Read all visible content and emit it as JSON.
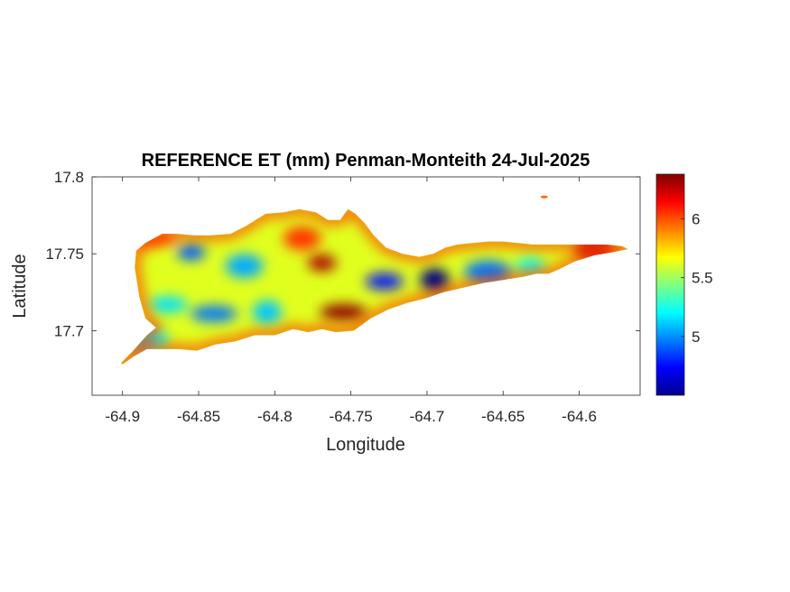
{
  "figure": {
    "title": "REFERENCE ET (mm) Penman-Monteith 24-Jul-2025",
    "xlabel": "Longitude",
    "ylabel": "Latitude"
  },
  "axes": {
    "x_ticks": [
      -64.9,
      -64.85,
      -64.8,
      -64.75,
      -64.7,
      -64.65,
      -64.6
    ],
    "x_tick_labels": [
      "-64.9",
      "-64.85",
      "-64.8",
      "-64.75",
      "-64.7",
      "-64.65",
      "-64.6"
    ],
    "y_ticks": [
      17.8,
      17.75,
      17.7
    ],
    "y_tick_labels": [
      "17.8",
      "17.75",
      "17.7"
    ],
    "xlim": [
      -64.92,
      -64.56
    ],
    "ylim": [
      17.658,
      17.8
    ]
  },
  "colorbar": {
    "ticks": [
      5,
      5.5,
      6
    ],
    "tick_labels": [
      "5",
      "5.5",
      "6"
    ],
    "range": [
      4.5,
      6.38
    ],
    "colormap": "jet"
  },
  "chart_data": {
    "type": "heatmap",
    "title": "REFERENCE ET (mm) Penman-Monteith 24-Jul-2025",
    "xlabel": "Longitude",
    "ylabel": "Latitude",
    "xlim": [
      -64.92,
      -64.56
    ],
    "ylim": [
      17.658,
      17.8
    ],
    "color_range": [
      4.5,
      6.38
    ],
    "colormap": "jet",
    "region_outline_lonlat": [
      [
        -64.901,
        17.679
      ],
      [
        -64.893,
        17.687
      ],
      [
        -64.884,
        17.697
      ],
      [
        -64.878,
        17.702
      ],
      [
        -64.885,
        17.708
      ],
      [
        -64.889,
        17.722
      ],
      [
        -64.892,
        17.741
      ],
      [
        -64.891,
        17.752
      ],
      [
        -64.885,
        17.757
      ],
      [
        -64.874,
        17.763
      ],
      [
        -64.864,
        17.763
      ],
      [
        -64.853,
        17.762
      ],
      [
        -64.842,
        17.762
      ],
      [
        -64.829,
        17.763
      ],
      [
        -64.819,
        17.768
      ],
      [
        -64.806,
        17.776
      ],
      [
        -64.794,
        17.777
      ],
      [
        -64.784,
        17.779
      ],
      [
        -64.773,
        17.777
      ],
      [
        -64.765,
        17.772
      ],
      [
        -64.757,
        17.772
      ],
      [
        -64.752,
        17.779
      ],
      [
        -64.747,
        17.776
      ],
      [
        -64.741,
        17.77
      ],
      [
        -64.735,
        17.762
      ],
      [
        -64.727,
        17.754
      ],
      [
        -64.716,
        17.75
      ],
      [
        -64.705,
        17.748
      ],
      [
        -64.696,
        17.75
      ],
      [
        -64.688,
        17.754
      ],
      [
        -64.68,
        17.756
      ],
      [
        -64.67,
        17.757
      ],
      [
        -64.66,
        17.758
      ],
      [
        -64.65,
        17.758
      ],
      [
        -64.64,
        17.757
      ],
      [
        -64.63,
        17.756
      ],
      [
        -64.62,
        17.756
      ],
      [
        -64.61,
        17.756
      ],
      [
        -64.6,
        17.756
      ],
      [
        -64.592,
        17.756
      ],
      [
        -64.582,
        17.756
      ],
      [
        -64.572,
        17.755
      ],
      [
        -64.568,
        17.753
      ],
      [
        -64.578,
        17.751
      ],
      [
        -64.59,
        17.749
      ],
      [
        -64.603,
        17.745
      ],
      [
        -64.613,
        17.74
      ],
      [
        -64.62,
        17.737
      ],
      [
        -64.628,
        17.737
      ],
      [
        -64.637,
        17.735
      ],
      [
        -64.65,
        17.733
      ],
      [
        -64.663,
        17.731
      ],
      [
        -64.676,
        17.728
      ],
      [
        -64.689,
        17.725
      ],
      [
        -64.701,
        17.721
      ],
      [
        -64.713,
        17.718
      ],
      [
        -64.725,
        17.714
      ],
      [
        -64.737,
        17.708
      ],
      [
        -64.748,
        17.7
      ],
      [
        -64.76,
        17.699
      ],
      [
        -64.769,
        17.701
      ],
      [
        -64.778,
        17.699
      ],
      [
        -64.788,
        17.701
      ],
      [
        -64.8,
        17.697
      ],
      [
        -64.813,
        17.697
      ],
      [
        -64.826,
        17.693
      ],
      [
        -64.839,
        17.691
      ],
      [
        -64.851,
        17.687
      ],
      [
        -64.863,
        17.688
      ],
      [
        -64.875,
        17.688
      ],
      [
        -64.884,
        17.688
      ],
      [
        -64.893,
        17.683
      ],
      [
        -64.9,
        17.678
      ]
    ],
    "islet_lonlat": [
      -64.623,
      17.787
    ],
    "value_fields": [
      {
        "lon": -64.855,
        "lat": 17.751,
        "value": 4.9
      },
      {
        "lon": -64.82,
        "lat": 17.742,
        "value": 5.05
      },
      {
        "lon": -64.84,
        "lat": 17.711,
        "value": 4.95
      },
      {
        "lon": -64.805,
        "lat": 17.712,
        "value": 5.1
      },
      {
        "lon": -64.87,
        "lat": 17.717,
        "value": 5.15
      },
      {
        "lon": -64.885,
        "lat": 17.694,
        "value": 5.2
      },
      {
        "lon": -64.769,
        "lat": 17.744,
        "value": 6.3
      },
      {
        "lon": -64.782,
        "lat": 17.76,
        "value": 6.05
      },
      {
        "lon": -64.755,
        "lat": 17.712,
        "value": 6.35
      },
      {
        "lon": -64.695,
        "lat": 17.733,
        "value": 4.5
      },
      {
        "lon": -64.728,
        "lat": 17.732,
        "value": 4.75
      },
      {
        "lon": -64.66,
        "lat": 17.738,
        "value": 4.95
      },
      {
        "lon": -64.632,
        "lat": 17.742,
        "value": 5.2
      },
      {
        "lon": -64.59,
        "lat": 17.753,
        "value": 6.3
      },
      {
        "lon": -64.88,
        "lat": 17.76,
        "value": 6.0
      }
    ]
  }
}
